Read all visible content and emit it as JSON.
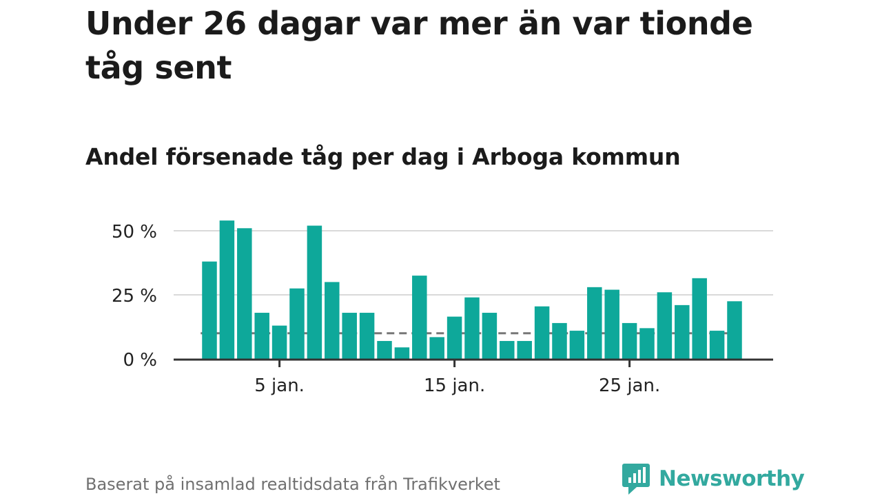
{
  "title": "Under 26 dagar var mer än var tionde tåg sent",
  "subtitle": "Andel försenade tåg per dag i Arboga kommun",
  "source": "Baserat på insamlad realtidsdata från Trafikverket",
  "brand": {
    "name": "Newsworthy",
    "icon": "newsworthy-logo-icon",
    "color": "#33a99f"
  },
  "colors": {
    "bar": "#0ea89a",
    "reference_line": "#777777",
    "grid": "#d9d9d9",
    "axis": "#333333"
  },
  "chart_data": {
    "type": "bar",
    "x": [
      "1 jan.",
      "2 jan.",
      "3 jan.",
      "4 jan.",
      "5 jan.",
      "6 jan.",
      "7 jan.",
      "8 jan.",
      "9 jan.",
      "10 jan.",
      "11 jan.",
      "12 jan.",
      "13 jan.",
      "14 jan.",
      "15 jan.",
      "16 jan.",
      "17 jan.",
      "18 jan.",
      "19 jan.",
      "20 jan.",
      "21 jan.",
      "22 jan.",
      "23 jan.",
      "24 jan.",
      "25 jan.",
      "26 jan.",
      "27 jan.",
      "28 jan.",
      "29 jan.",
      "30 jan.",
      "31 jan."
    ],
    "values": [
      38,
      54,
      51,
      18,
      13,
      27.5,
      52,
      30,
      18,
      18,
      7,
      4.5,
      32.5,
      8.5,
      16.5,
      24,
      18,
      7,
      7,
      20.5,
      14,
      11,
      28,
      27,
      14,
      12,
      26,
      21,
      31.5,
      11,
      22.5
    ],
    "xticks": [
      "5 jan.",
      "15 jan.",
      "25 jan."
    ],
    "yticks": [
      0,
      25,
      50
    ],
    "ytick_labels": [
      "0 %",
      "25 %",
      "50 %"
    ],
    "ylim": [
      0,
      55
    ],
    "reference_line": {
      "value": 10,
      "style": "dashed"
    },
    "grid": true
  }
}
